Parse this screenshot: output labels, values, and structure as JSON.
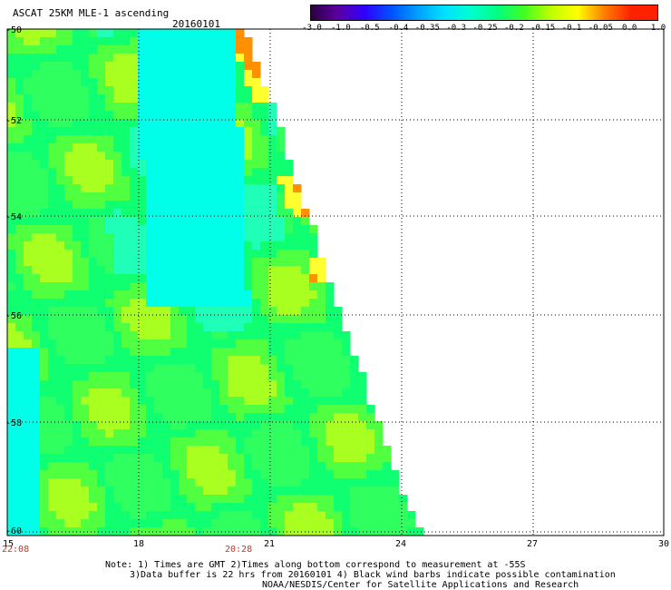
{
  "header": {
    "title": "ASCAT 25KM MLE-1 ascending",
    "date": "20160101"
  },
  "colorbar": {
    "labels": [
      "-3.0",
      "-1.0",
      "-0.5",
      "-0.4",
      "-0.35",
      "-0.3",
      "-0.25",
      "-0.2",
      "-0.15",
      "-0.1",
      "-0.05",
      "0.0",
      "1.0"
    ],
    "colors": [
      "#2b0040",
      "#5a00a0",
      "#3000ff",
      "#0050ff",
      "#00a0ff",
      "#00e0ff",
      "#00ffd0",
      "#00ff80",
      "#40ff20",
      "#c0ff00",
      "#ffff00",
      "#ff8000",
      "#ff2000"
    ]
  },
  "axes": {
    "y_labels": [
      "-50",
      "-52",
      "-54",
      "-56",
      "-58",
      "-60"
    ],
    "x_labels": [
      "15",
      "18",
      "21",
      "24",
      "27",
      "30"
    ]
  },
  "times": {
    "start": "22:08",
    "mid": "20:28"
  },
  "notes": {
    "line1": "Note: 1) Times are GMT 2)Times along bottom correspond to measurement at -55S",
    "line2": "3)Data buffer is 22 hrs from 20160101 4) Black wind barbs indicate possible contamination",
    "line3": "NOAA/NESDIS/Center for Satellite Applications and Research"
  }
}
